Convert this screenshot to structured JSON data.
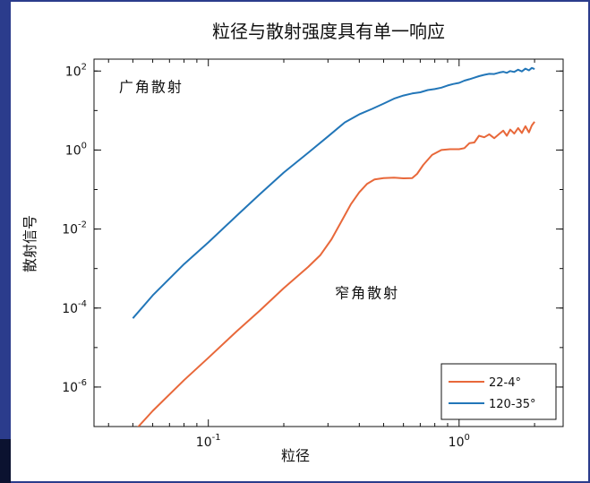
{
  "colors": {
    "background": "#2b3c8c",
    "panel": "#ffffff",
    "series_orange": "#e8683a",
    "series_blue": "#2276b8"
  },
  "chart_data": {
    "type": "line",
    "title": "粒径与散射强度具有单一响应",
    "xlabel": "粒径",
    "ylabel": "散射信号",
    "xscale": "log",
    "yscale": "log",
    "xlim": [
      0.035,
      2.6
    ],
    "ylim": [
      1e-07,
      200
    ],
    "grid": false,
    "legend_position": "bottom-right",
    "x_ticks": [
      {
        "base": "10",
        "exp": "-1",
        "value": 0.1
      },
      {
        "base": "10",
        "exp": "0",
        "value": 1
      }
    ],
    "y_ticks": [
      {
        "base": "10",
        "exp": "2",
        "value": 100
      },
      {
        "base": "10",
        "exp": "0",
        "value": 1
      },
      {
        "base": "10",
        "exp": "-2",
        "value": 0.01
      },
      {
        "base": "10",
        "exp": "-4",
        "value": 0.0001
      },
      {
        "base": "10",
        "exp": "-6",
        "value": 1e-06
      }
    ],
    "annotations": [
      {
        "text": "广角散射",
        "x": 0.044,
        "y": 30
      },
      {
        "text": "窄角散射",
        "x": 0.32,
        "y": 0.00018
      }
    ],
    "series": [
      {
        "name": "22-4°",
        "color": "#e8683a",
        "x": [
          0.05,
          0.06,
          0.08,
          0.1,
          0.13,
          0.16,
          0.2,
          0.25,
          0.28,
          0.31,
          0.34,
          0.37,
          0.4,
          0.43,
          0.46,
          0.5,
          0.55,
          0.6,
          0.65,
          0.68,
          0.72,
          0.78,
          0.85,
          0.92,
          1.0,
          1.05,
          1.1,
          1.15,
          1.2,
          1.26,
          1.32,
          1.38,
          1.45,
          1.5,
          1.55,
          1.6,
          1.66,
          1.72,
          1.78,
          1.84,
          1.9,
          1.95,
          2.0
        ],
        "y": [
          7e-08,
          2.5e-07,
          1.5e-06,
          5.5e-06,
          2.6e-05,
          8.5e-05,
          0.00032,
          0.0011,
          0.0022,
          0.0055,
          0.016,
          0.042,
          0.085,
          0.14,
          0.18,
          0.195,
          0.2,
          0.192,
          0.195,
          0.25,
          0.42,
          0.75,
          1.0,
          1.05,
          1.05,
          1.12,
          1.5,
          1.55,
          2.3,
          2.1,
          2.5,
          2.0,
          2.6,
          3.1,
          2.3,
          3.3,
          2.6,
          3.6,
          2.7,
          4.0,
          2.8,
          4.2,
          5.2
        ]
      },
      {
        "name": "120-35°",
        "color": "#2276b8",
        "x": [
          0.05,
          0.06,
          0.08,
          0.1,
          0.13,
          0.16,
          0.2,
          0.25,
          0.3,
          0.35,
          0.4,
          0.45,
          0.5,
          0.55,
          0.6,
          0.65,
          0.7,
          0.75,
          0.8,
          0.85,
          0.9,
          0.95,
          1.0,
          1.05,
          1.1,
          1.15,
          1.2,
          1.26,
          1.32,
          1.38,
          1.45,
          1.5,
          1.55,
          1.6,
          1.66,
          1.72,
          1.78,
          1.84,
          1.9,
          1.95,
          2.0
        ],
        "y": [
          5.5e-05,
          0.00021,
          0.0013,
          0.0046,
          0.022,
          0.075,
          0.27,
          0.85,
          2.2,
          5.0,
          8.0,
          11.0,
          15.0,
          20.0,
          24.0,
          27.0,
          29.0,
          33.0,
          35.0,
          38.0,
          43.0,
          47.0,
          50.0,
          57.0,
          62.0,
          68.0,
          74.0,
          80.0,
          85.0,
          84.0,
          92.0,
          96.0,
          90.0,
          100.0,
          95.0,
          108.0,
          98.0,
          115.0,
          104.0,
          120.0,
          112.0
        ]
      }
    ]
  }
}
